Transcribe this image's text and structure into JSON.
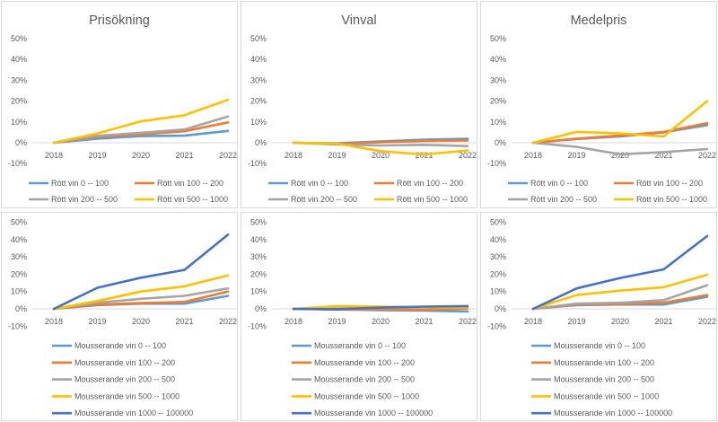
{
  "chart_data": [
    {
      "type": "line",
      "title": "Prisökning",
      "categories": [
        "2018",
        "2019",
        "2020",
        "2021",
        "2022"
      ],
      "ylim": [
        -0.1,
        0.5
      ],
      "yticks": [
        "-10%",
        "0%",
        "10%",
        "20%",
        "30%",
        "40%",
        "50%"
      ],
      "grid": false,
      "legend": "bottom",
      "series": [
        {
          "name": "Rött vin 0 -- 100",
          "values": [
            0,
            0.02,
            0.032,
            0.034,
            0.057
          ],
          "color": "#5b9bd5"
        },
        {
          "name": "Rött vin 100 -- 200",
          "values": [
            0,
            0.028,
            0.04,
            0.055,
            0.098
          ],
          "color": "#ed7d31"
        },
        {
          "name": "Rött vin 200 -- 500",
          "values": [
            0,
            0.033,
            0.048,
            0.064,
            0.126
          ],
          "color": "#a5a5a5"
        },
        {
          "name": "Rött vin 500 -- 1000",
          "values": [
            0,
            0.045,
            0.103,
            0.132,
            0.206
          ],
          "color": "#ffc000"
        }
      ]
    },
    {
      "type": "line",
      "title": "Vinval",
      "categories": [
        "2018",
        "2019",
        "2020",
        "2021",
        "2022"
      ],
      "ylim": [
        -0.1,
        0.5
      ],
      "yticks": [
        "-10%",
        "0%",
        "10%",
        "20%",
        "30%",
        "40%",
        "50%"
      ],
      "grid": false,
      "legend": "bottom",
      "series": [
        {
          "name": "Rött vin 0 -- 100",
          "values": [
            0,
            -0.002,
            0.006,
            0.015,
            0.019
          ],
          "color": "#5b9bd5"
        },
        {
          "name": "Rött vin 100 -- 200",
          "values": [
            0,
            -0.005,
            0.002,
            0.009,
            0.011
          ],
          "color": "#ed7d31"
        },
        {
          "name": "Rött vin 200 -- 500",
          "values": [
            0,
            -0.008,
            -0.013,
            -0.01,
            -0.016
          ],
          "color": "#a5a5a5"
        },
        {
          "name": "Rött vin 500 -- 1000",
          "values": [
            0,
            -0.004,
            -0.04,
            -0.056,
            -0.037
          ],
          "color": "#ffc000"
        }
      ]
    },
    {
      "type": "line",
      "title": "Medelpris",
      "categories": [
        "2018",
        "2019",
        "2020",
        "2021",
        "2022"
      ],
      "ylim": [
        -0.1,
        0.5
      ],
      "yticks": [
        "-10%",
        "0%",
        "10%",
        "20%",
        "30%",
        "40%",
        "50%"
      ],
      "grid": false,
      "legend": "bottom",
      "series": [
        {
          "name": "Rött vin 0 -- 100",
          "values": [
            0,
            0.018,
            0.03,
            0.05,
            0.085
          ],
          "color": "#5b9bd5"
        },
        {
          "name": "Rött vin 100 -- 200",
          "values": [
            0,
            0.02,
            0.035,
            0.052,
            0.094
          ],
          "color": "#ed7d31"
        },
        {
          "name": "Rött vin 200 -- 500",
          "values": [
            0,
            -0.02,
            -0.055,
            -0.045,
            -0.03
          ],
          "color": "#a5a5a5"
        },
        {
          "name": "Rött vin 500 -- 1000",
          "values": [
            0,
            0.052,
            0.045,
            0.03,
            0.2
          ],
          "color": "#ffc000"
        }
      ]
    },
    {
      "type": "line",
      "title": "",
      "categories": [
        "2018",
        "2019",
        "2020",
        "2021",
        "2022"
      ],
      "ylim": [
        -0.1,
        0.5
      ],
      "yticks": [
        "-10%",
        "0%",
        "10%",
        "20%",
        "30%",
        "40%",
        "50%"
      ],
      "grid": false,
      "legend": "bottom",
      "series": [
        {
          "name": "Mousserande vin 0 -- 100",
          "values": [
            0,
            0.022,
            0.03,
            0.03,
            0.075
          ],
          "color": "#5b9bd5"
        },
        {
          "name": "Mousserande vin 100 -- 200",
          "values": [
            0,
            0.025,
            0.033,
            0.04,
            0.1
          ],
          "color": "#ed7d31"
        },
        {
          "name": "Mousserande vin 200 -- 500",
          "values": [
            0,
            0.035,
            0.058,
            0.075,
            0.118
          ],
          "color": "#a5a5a5"
        },
        {
          "name": "Mousserande vin 500 -- 1000",
          "values": [
            0,
            0.045,
            0.1,
            0.13,
            0.193
          ],
          "color": "#ffc000"
        },
        {
          "name": "Mousserande vin 1000 -- 100000",
          "values": [
            0,
            0.122,
            0.18,
            0.225,
            0.428
          ],
          "color": "#4472c4"
        }
      ]
    },
    {
      "type": "line",
      "title": "",
      "categories": [
        "2018",
        "2019",
        "2020",
        "2021",
        "2022"
      ],
      "ylim": [
        -0.1,
        0.5
      ],
      "yticks": [
        "-10%",
        "0%",
        "10%",
        "20%",
        "30%",
        "40%",
        "50%"
      ],
      "grid": false,
      "legend": "bottom",
      "series": [
        {
          "name": "Mousserande vin 0 -- 100",
          "values": [
            0,
            -0.003,
            -0.008,
            -0.01,
            -0.015
          ],
          "color": "#5b9bd5"
        },
        {
          "name": "Mousserande vin 100 -- 200",
          "values": [
            0,
            -0.004,
            -0.003,
            -0.005,
            0.002
          ],
          "color": "#ed7d31"
        },
        {
          "name": "Mousserande vin 200 -- 500",
          "values": [
            0,
            0.002,
            0.006,
            0.009,
            0.012
          ],
          "color": "#a5a5a5"
        },
        {
          "name": "Mousserande vin 500 -- 1000",
          "values": [
            0,
            0.016,
            0.013,
            0.01,
            0.008
          ],
          "color": "#ffc000"
        },
        {
          "name": "Mousserande vin 1000 -- 100000",
          "values": [
            0,
            -0.002,
            0.007,
            0.013,
            0.016
          ],
          "color": "#4472c4"
        }
      ]
    },
    {
      "type": "line",
      "title": "",
      "categories": [
        "2018",
        "2019",
        "2020",
        "2021",
        "2022"
      ],
      "ylim": [
        -0.1,
        0.5
      ],
      "yticks": [
        "-10%",
        "0%",
        "10%",
        "20%",
        "30%",
        "40%",
        "50%"
      ],
      "grid": false,
      "legend": "bottom",
      "series": [
        {
          "name": "Mousserande vin 0 -- 100",
          "values": [
            0,
            0.022,
            0.025,
            0.025,
            0.07
          ],
          "color": "#5b9bd5"
        },
        {
          "name": "Mousserande vin 100 -- 200",
          "values": [
            0,
            0.025,
            0.028,
            0.035,
            0.08
          ],
          "color": "#ed7d31"
        },
        {
          "name": "Mousserande vin 200 -- 500",
          "values": [
            0,
            0.03,
            0.035,
            0.05,
            0.137
          ],
          "color": "#a5a5a5"
        },
        {
          "name": "Mousserande vin 500 -- 1000",
          "values": [
            0,
            0.08,
            0.105,
            0.125,
            0.197
          ],
          "color": "#ffc000"
        },
        {
          "name": "Mousserande vin 1000 -- 100000",
          "values": [
            0,
            0.118,
            0.178,
            0.228,
            0.42
          ],
          "color": "#4472c4"
        }
      ]
    }
  ]
}
